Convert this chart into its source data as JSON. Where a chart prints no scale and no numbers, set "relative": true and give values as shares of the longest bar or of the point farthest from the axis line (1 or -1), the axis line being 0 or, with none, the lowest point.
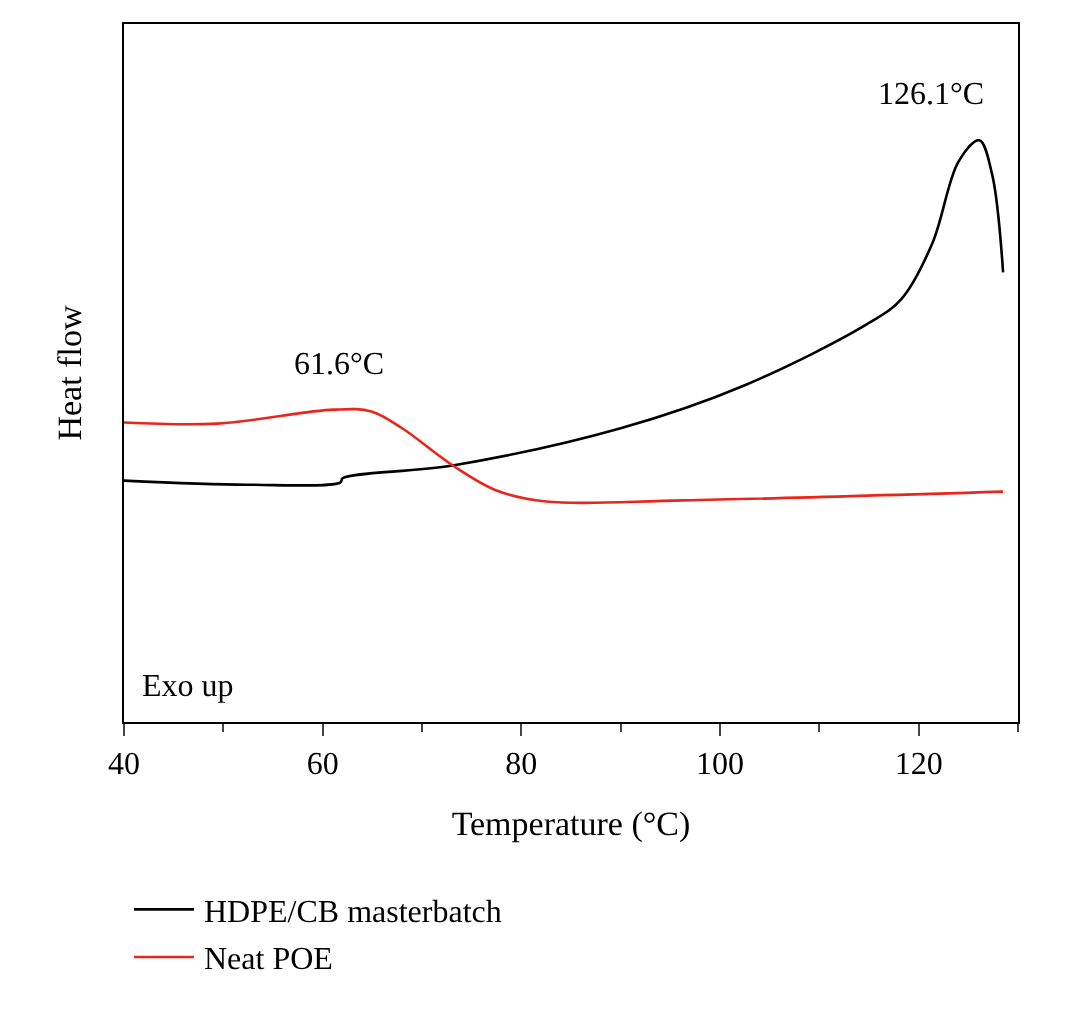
{
  "chart_data": {
    "type": "line",
    "xlabel": "Temperature (°C)",
    "ylabel": "Heat flow",
    "relative": true,
    "xlim": [
      40,
      130
    ],
    "xticks": [
      40,
      60,
      80,
      100,
      120
    ],
    "tick_labels": "x",
    "legend": "bottom",
    "marker": "none",
    "line_style": "solid",
    "series": [
      {
        "name": "HDPE/CB masterbatch",
        "color": "#000000",
        "x": [
          40,
          52.4,
          61.8,
          62,
          73.1,
          90,
          102.5,
          115,
          118.3,
          121.4,
          124,
          126.1,
          127.4,
          128.5
        ],
        "values": [
          0.415,
          0.408,
          0.412,
          0.419,
          0.441,
          0.505,
          0.579,
          0.686,
          0.728,
          0.824,
          0.963,
          1.0,
          0.941,
          0.773
        ]
      },
      {
        "name": "Neat POE",
        "color": "#e8261c",
        "x": [
          40,
          49.4,
          61.1,
          64.9,
          68,
          73.1,
          77.5,
          82.5,
          96.3,
          128.5
        ],
        "values": [
          0.515,
          0.513,
          0.537,
          0.534,
          0.505,
          0.441,
          0.398,
          0.379,
          0.381,
          0.396
        ]
      }
    ],
    "annotations": [
      {
        "text": "61.6°C",
        "x": 61.6,
        "y": 0.537
      },
      {
        "text": "126.1°C",
        "x": 126.1,
        "y": 1.0
      },
      "Exo up"
    ]
  }
}
